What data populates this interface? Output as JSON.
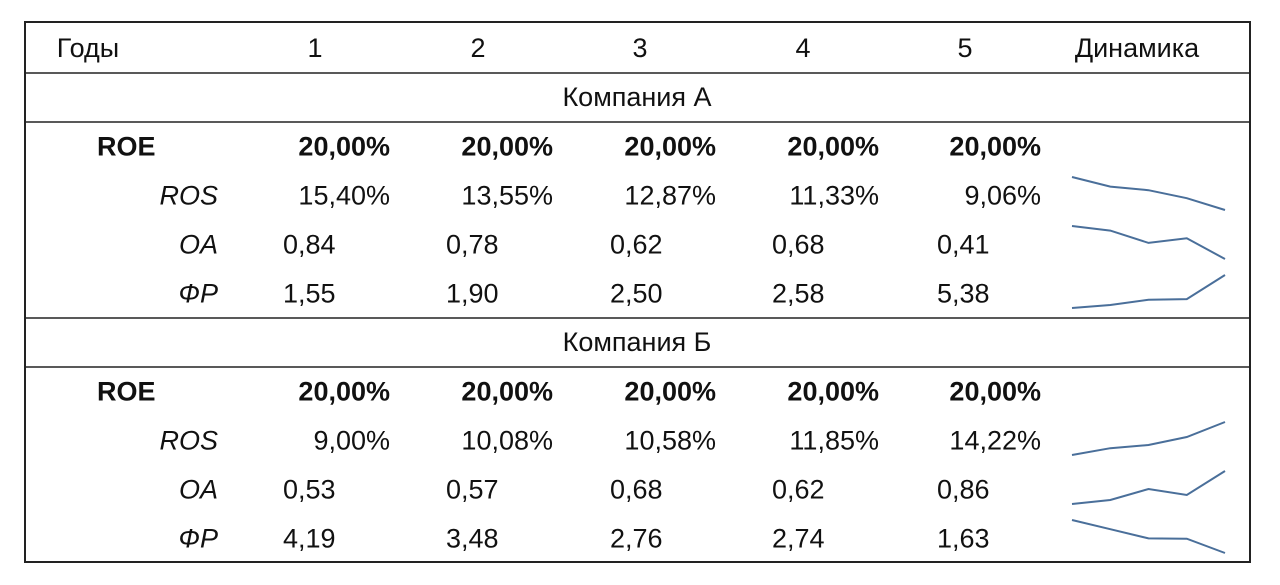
{
  "table": {
    "header": [
      "Годы",
      "1",
      "2",
      "3",
      "4",
      "5",
      "Динамика"
    ],
    "sections": [
      {
        "title": "Компания А",
        "rows": [
          {
            "name": "ROE",
            "bold": true,
            "sparkline": false,
            "values": [
              20,
              20,
              20,
              20,
              20
            ],
            "value_labels": [
              "20,00%",
              "20,00%",
              "20,00%",
              "20,00%",
              "20,00%"
            ]
          },
          {
            "name": "ROS",
            "bold": false,
            "sparkline": true,
            "values": [
              15.4,
              13.55,
              12.87,
              11.33,
              9.06
            ],
            "value_labels": [
              "15,40%",
              "13,55%",
              "12,87%",
              "11,33%",
              "9,06%"
            ]
          },
          {
            "name": "OA",
            "bold": false,
            "sparkline": true,
            "values": [
              0.84,
              0.78,
              0.62,
              0.68,
              0.41
            ],
            "value_labels": [
              "0,84",
              "0,78",
              "0,62",
              "0,68",
              "0,41"
            ]
          },
          {
            "name": "ФР",
            "bold": false,
            "sparkline": true,
            "values": [
              1.55,
              1.9,
              2.5,
              2.58,
              5.38
            ],
            "value_labels": [
              "1,55",
              "1,90",
              "2,50",
              "2,58",
              "5,38"
            ]
          }
        ]
      },
      {
        "title": "Компания Б",
        "rows": [
          {
            "name": "ROE",
            "bold": true,
            "sparkline": false,
            "values": [
              20,
              20,
              20,
              20,
              20
            ],
            "value_labels": [
              "20,00%",
              "20,00%",
              "20,00%",
              "20,00%",
              "20,00%"
            ]
          },
          {
            "name": "ROS",
            "bold": false,
            "sparkline": true,
            "values": [
              9,
              10.08,
              10.58,
              11.85,
              14.22
            ],
            "value_labels": [
              "9,00%",
              "10,08%",
              "10,58%",
              "11,85%",
              "14,22%"
            ]
          },
          {
            "name": "OA",
            "bold": false,
            "sparkline": true,
            "values": [
              0.53,
              0.57,
              0.68,
              0.62,
              0.86
            ],
            "value_labels": [
              "0,53",
              "0,57",
              "0,68",
              "0,62",
              "0,86"
            ]
          },
          {
            "name": "ФР",
            "bold": false,
            "sparkline": true,
            "values": [
              4.19,
              3.48,
              2.76,
              2.74,
              1.63
            ],
            "value_labels": [
              "4,19",
              "3,48",
              "2,76",
              "2,74",
              "1,63"
            ]
          }
        ]
      }
    ]
  }
}
